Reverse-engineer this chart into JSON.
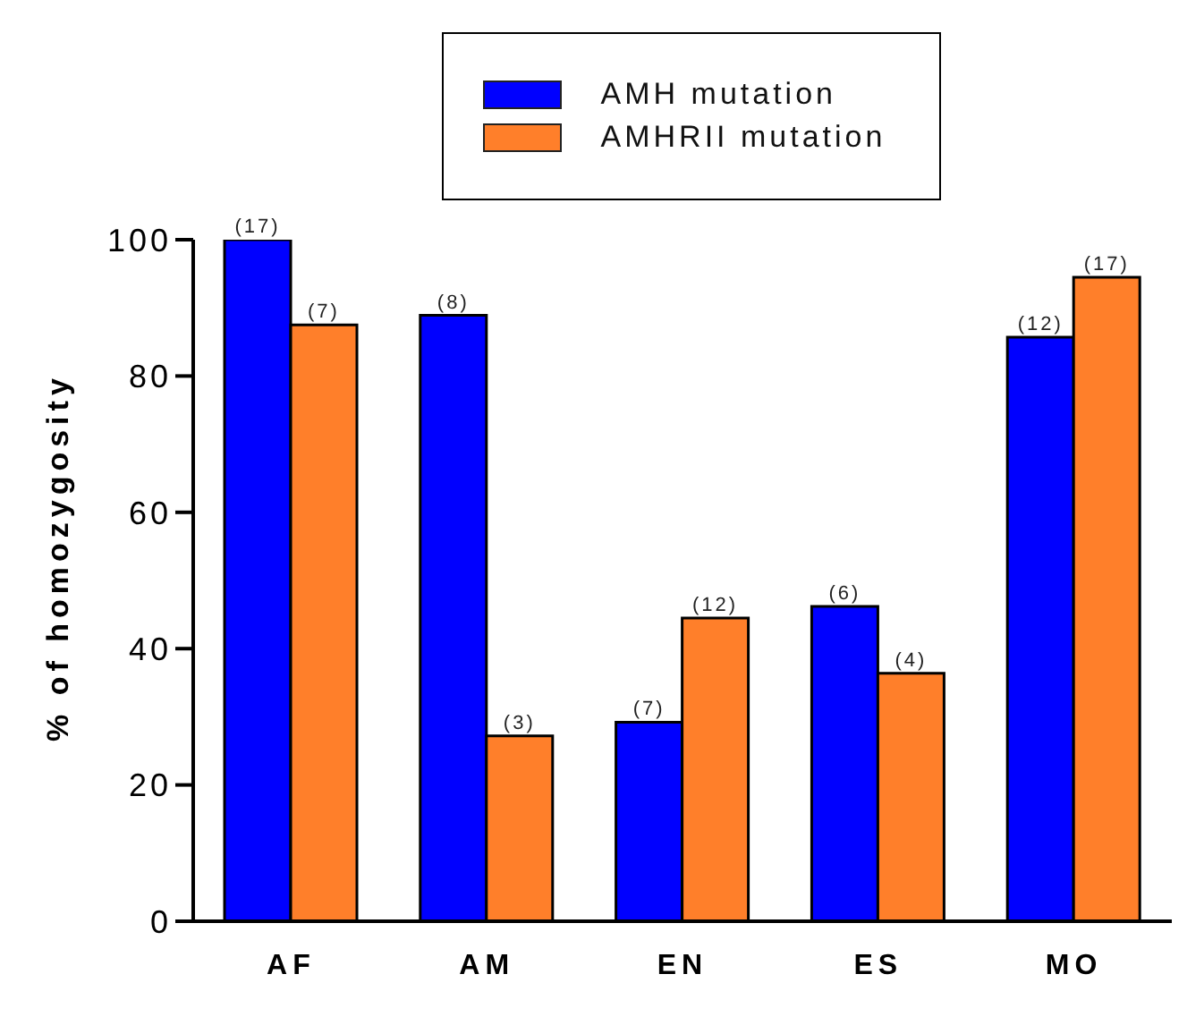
{
  "chart_data": {
    "type": "bar",
    "ylabel": "% of homozygosity",
    "categories": [
      "AF",
      "AM",
      "EN",
      "ES",
      "MO"
    ],
    "series": [
      {
        "name": "AMH mutation",
        "color": "#0000ff",
        "values": [
          100,
          88.9,
          29.2,
          46.2,
          85.7
        ]
      },
      {
        "name": "AMHRII mutation",
        "color": "#ff7f2a",
        "values": [
          87.5,
          27.2,
          44.5,
          36.4,
          94.5
        ]
      }
    ],
    "annotations": [
      {
        "text": "(17)",
        "x": "AF",
        "y": 100
      },
      {
        "text": "(7)",
        "x": "AF",
        "y": 87.5
      },
      {
        "text": "(8)",
        "x": "AM",
        "y": 88.9
      },
      {
        "text": "(3)",
        "x": "AM",
        "y": 27.2
      },
      {
        "text": "(7)",
        "x": "EN",
        "y": 29.2
      },
      {
        "text": "(12)",
        "x": "EN",
        "y": 44.5
      },
      {
        "text": "(6)",
        "x": "ES",
        "y": 46.2
      },
      {
        "text": "(4)",
        "x": "ES",
        "y": 36.4
      },
      {
        "text": "(12)",
        "x": "MO",
        "y": 85.7
      },
      {
        "text": "(17)",
        "x": "MO",
        "y": 94.5
      }
    ],
    "ylim": [
      0,
      100
    ],
    "yticks": [
      0,
      20,
      40,
      60,
      80,
      100
    ],
    "legend": "top",
    "grid": false
  }
}
